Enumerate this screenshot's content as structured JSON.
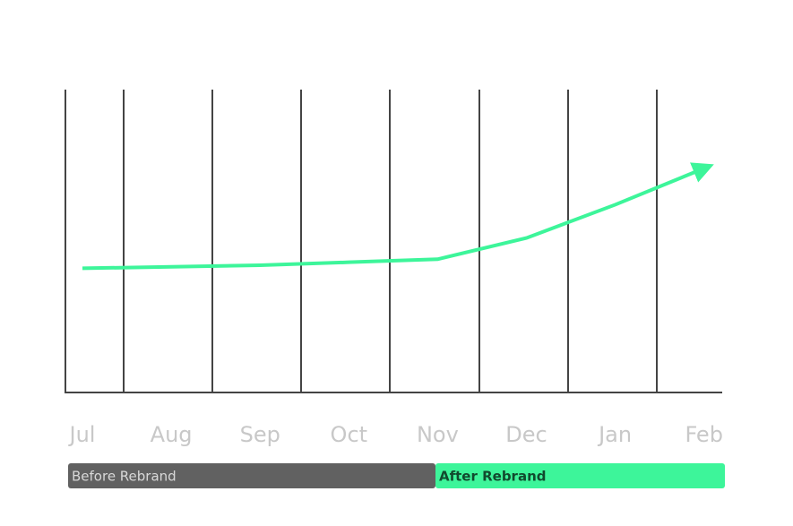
{
  "chart_data": {
    "type": "line",
    "categories": [
      "Jul",
      "Aug",
      "Sep",
      "Oct",
      "Nov",
      "Dec",
      "Jan",
      "Feb"
    ],
    "values": [
      41,
      41.5,
      42,
      43,
      44,
      51,
      62,
      74
    ],
    "color": "#3df59a",
    "ylim": [
      0,
      100
    ],
    "periods": [
      {
        "label": "Before Rebrand",
        "color": "#616161"
      },
      {
        "label": "After Rebrand",
        "color": "#3df59a"
      }
    ]
  }
}
